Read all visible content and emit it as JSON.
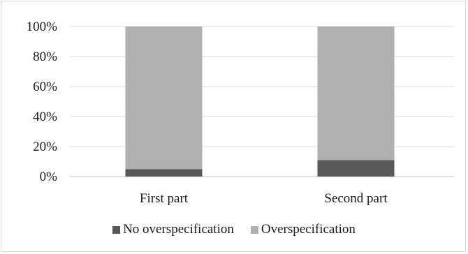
{
  "chart_data": {
    "type": "bar",
    "stacked": true,
    "percent": true,
    "categories": [
      "First part",
      "Second part"
    ],
    "series": [
      {
        "name": "No overspecification",
        "values": [
          5,
          11
        ],
        "color": "#595959"
      },
      {
        "name": "Overspecification",
        "values": [
          95,
          89
        ],
        "color": "#b0b0b0"
      }
    ],
    "title": "",
    "xlabel": "",
    "ylabel": "",
    "ylim": [
      0,
      100
    ],
    "yticks": [
      "0%",
      "20%",
      "40%",
      "60%",
      "80%",
      "100%"
    ],
    "grid": true,
    "legend_position": "bottom"
  }
}
